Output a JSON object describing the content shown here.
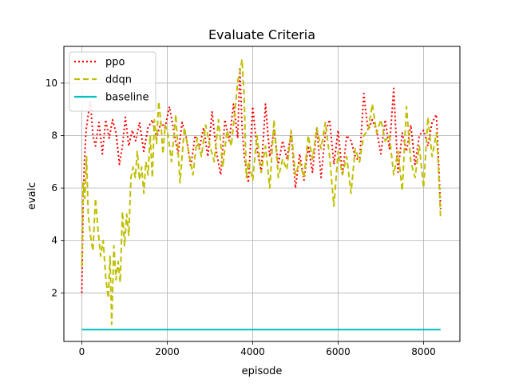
{
  "chart_data": {
    "type": "line",
    "title": "Evaluate Criteria",
    "xlabel": "episode",
    "ylabel": "evalc",
    "xlim": [
      -420,
      8850
    ],
    "ylim": [
      0.15,
      11.4
    ],
    "xticks": [
      0,
      2000,
      4000,
      6000,
      8000
    ],
    "yticks": [
      2,
      4,
      6,
      8,
      10
    ],
    "xtick_labels": [
      "0",
      "2000",
      "4000",
      "6000",
      "8000"
    ],
    "ytick_labels": [
      "2",
      "4",
      "6",
      "8",
      "10"
    ],
    "grid": true,
    "legend_position": "top-left",
    "series": [
      {
        "name": "ppo",
        "color": "#ff0000",
        "style": "dotted",
        "x": [
          0,
          30,
          60,
          100,
          150,
          200,
          260,
          320,
          400,
          480,
          560,
          640,
          720,
          800,
          880,
          950,
          1020,
          1100,
          1180,
          1260,
          1350,
          1450,
          1550,
          1650,
          1750,
          1850,
          1950,
          2050,
          2150,
          2250,
          2350,
          2450,
          2550,
          2650,
          2750,
          2850,
          2950,
          3050,
          3150,
          3250,
          3350,
          3450,
          3550,
          3650,
          3700,
          3750,
          3800,
          3900,
          4000,
          4100,
          4200,
          4300,
          4400,
          4500,
          4600,
          4700,
          4800,
          4900,
          5000,
          5100,
          5200,
          5300,
          5400,
          5500,
          5600,
          5700,
          5800,
          5900,
          6000,
          6100,
          6200,
          6300,
          6400,
          6500,
          6600,
          6700,
          6800,
          6900,
          7000,
          7100,
          7200,
          7300,
          7400,
          7500,
          7600,
          7700,
          7800,
          7900,
          8000,
          8100,
          8200,
          8300,
          8400
        ],
        "y": [
          2.0,
          5.5,
          7.0,
          8.2,
          8.8,
          9.3,
          8.0,
          7.6,
          8.5,
          7.3,
          8.6,
          7.9,
          8.6,
          8.1,
          6.9,
          7.6,
          8.7,
          7.6,
          8.2,
          7.8,
          8.5,
          7.4,
          8.3,
          8.6,
          7.9,
          8.5,
          8.3,
          9.1,
          8.2,
          7.3,
          8.5,
          7.9,
          6.8,
          8.0,
          7.5,
          8.3,
          7.2,
          8.9,
          7.4,
          6.5,
          8.6,
          7.8,
          9.2,
          7.9,
          10.6,
          8.4,
          7.2,
          6.2,
          9.1,
          7.5,
          6.6,
          9.2,
          7.2,
          8.2,
          6.9,
          7.8,
          7.1,
          8.1,
          6.0,
          7.3,
          6.3,
          7.6,
          6.6,
          8.3,
          6.4,
          8.1,
          8.6,
          6.9,
          8.2,
          6.5,
          8.0,
          7.8,
          7.2,
          7.0,
          9.6,
          8.2,
          8.6,
          8.2,
          7.3,
          8.6,
          7.5,
          9.8,
          6.6,
          8.1,
          7.4,
          8.4,
          6.9,
          8.0,
          8.2,
          7.6,
          8.5,
          8.8,
          5.2
        ]
      },
      {
        "name": "ddqn",
        "color": "#bfbf00",
        "style": "dashed",
        "x": [
          0,
          30,
          70,
          110,
          150,
          200,
          260,
          320,
          380,
          440,
          500,
          560,
          620,
          660,
          700,
          750,
          800,
          850,
          900,
          950,
          1000,
          1050,
          1100,
          1150,
          1200,
          1250,
          1300,
          1350,
          1400,
          1450,
          1500,
          1550,
          1600,
          1650,
          1700,
          1750,
          1800,
          1850,
          1900,
          1950,
          2000,
          2100,
          2200,
          2300,
          2400,
          2500,
          2600,
          2700,
          2800,
          2900,
          3000,
          3100,
          3200,
          3300,
          3400,
          3500,
          3600,
          3650,
          3700,
          3750,
          3800,
          3850,
          3900,
          4000,
          4100,
          4200,
          4300,
          4400,
          4500,
          4600,
          4700,
          4800,
          4900,
          5000,
          5100,
          5200,
          5300,
          5400,
          5500,
          5600,
          5700,
          5800,
          5900,
          6000,
          6100,
          6200,
          6300,
          6400,
          6500,
          6600,
          6700,
          6800,
          6900,
          7000,
          7100,
          7200,
          7300,
          7400,
          7500,
          7600,
          7700,
          7800,
          7900,
          8000,
          8100,
          8200,
          8300,
          8350,
          8400
        ],
        "y": [
          3.0,
          6.2,
          5.6,
          7.2,
          5.0,
          4.2,
          3.6,
          5.6,
          4.4,
          3.4,
          4.0,
          2.6,
          1.8,
          3.4,
          0.8,
          3.8,
          2.5,
          3.2,
          2.4,
          5.1,
          3.8,
          5.0,
          4.2,
          6.4,
          6.8,
          6.4,
          7.4,
          6.3,
          6.8,
          5.8,
          7.0,
          6.5,
          8.0,
          6.4,
          8.6,
          7.7,
          9.3,
          8.5,
          7.3,
          8.4,
          8.2,
          7.0,
          8.8,
          6.2,
          8.3,
          7.4,
          6.5,
          7.9,
          7.2,
          8.4,
          7.6,
          7.0,
          8.6,
          6.8,
          8.2,
          7.6,
          9.2,
          10.1,
          10.4,
          10.9,
          9.5,
          6.4,
          7.0,
          6.3,
          8.0,
          6.6,
          7.6,
          6.0,
          8.6,
          6.4,
          7.1,
          6.7,
          8.2,
          6.5,
          7.0,
          6.4,
          8.0,
          7.1,
          8.3,
          7.5,
          8.5,
          7.2,
          5.3,
          7.4,
          6.5,
          7.2,
          5.8,
          7.5,
          7.0,
          8.0,
          8.2,
          9.2,
          8.1,
          8.6,
          7.8,
          8.0,
          6.5,
          7.4,
          5.9,
          9.1,
          7.0,
          6.4,
          7.6,
          6.0,
          8.7,
          7.2,
          8.1,
          6.8,
          4.8
        ]
      },
      {
        "name": "baseline",
        "color": "#00bfbf",
        "style": "solid",
        "x": [
          0,
          8400
        ],
        "y": [
          0.6,
          0.6
        ]
      }
    ]
  }
}
